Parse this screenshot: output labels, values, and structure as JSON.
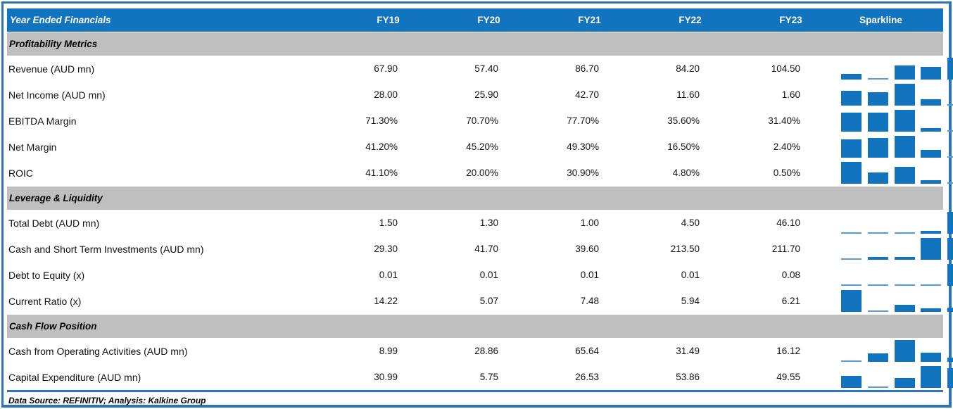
{
  "header": {
    "title": "Year Ended Financials",
    "columns": [
      "FY19",
      "FY20",
      "FY21",
      "FY22",
      "FY23"
    ],
    "sparkline_label": "Sparkline"
  },
  "footer": {
    "source_note": "Data Source: REFINITIV; Analysis: Kalkine Group"
  },
  "colors": {
    "header_blue": "#1273BE",
    "section_gray": "#BFBFBF",
    "border_blue": "#2E75B6",
    "bar_blue": "#1273BE",
    "bar_blue_min": "#5B9BD5",
    "header_text": "#FFFFFF",
    "body_text": "#000000"
  },
  "chart_data": {
    "type": "table",
    "title": "Year Ended Financials",
    "columns": [
      "FY19",
      "FY20",
      "FY21",
      "FY22",
      "FY23"
    ],
    "sparkline": {
      "type": "bar",
      "scaling": "per-row min-max",
      "position": "right column"
    },
    "sections": [
      {
        "label": "Profitability Metrics",
        "rows": [
          {
            "label": "Revenue (AUD mn)",
            "display": [
              "67.90",
              "57.40",
              "86.70",
              "84.20",
              "104.50"
            ],
            "values": [
              67.9,
              57.4,
              86.7,
              84.2,
              104.5
            ]
          },
          {
            "label": "Net Income (AUD mn)",
            "display": [
              "28.00",
              "25.90",
              "42.70",
              "11.60",
              "1.60"
            ],
            "values": [
              28.0,
              25.9,
              42.7,
              11.6,
              1.6
            ]
          },
          {
            "label": "EBITDA Margin",
            "display": [
              "71.30%",
              "70.70%",
              "77.70%",
              "35.60%",
              "31.40%"
            ],
            "values": [
              71.3,
              70.7,
              77.7,
              35.6,
              31.4
            ]
          },
          {
            "label": "Net Margin",
            "display": [
              "41.20%",
              "45.20%",
              "49.30%",
              "16.50%",
              "2.40%"
            ],
            "values": [
              41.2,
              45.2,
              49.3,
              16.5,
              2.4
            ]
          },
          {
            "label": "ROIC",
            "display": [
              "41.10%",
              "20.00%",
              "30.90%",
              "4.80%",
              "0.50%"
            ],
            "values": [
              41.1,
              20.0,
              30.9,
              4.8,
              0.5
            ]
          }
        ]
      },
      {
        "label": "Leverage & Liquidity",
        "rows": [
          {
            "label": "Total Debt (AUD mn)",
            "display": [
              "1.50",
              "1.30",
              "1.00",
              "4.50",
              "46.10"
            ],
            "values": [
              1.5,
              1.3,
              1.0,
              4.5,
              46.1
            ]
          },
          {
            "label": "Cash and Short Term Investments (AUD mn)",
            "display": [
              "29.30",
              "41.70",
              "39.60",
              "213.50",
              "211.70"
            ],
            "values": [
              29.3,
              41.7,
              39.6,
              213.5,
              211.7
            ]
          },
          {
            "label": "Debt to Equity (x)",
            "display": [
              "0.01",
              "0.01",
              "0.01",
              "0.01",
              "0.08"
            ],
            "values": [
              0.01,
              0.01,
              0.01,
              0.01,
              0.08
            ]
          },
          {
            "label": "Current Ratio (x)",
            "display": [
              "14.22",
              "5.07",
              "7.48",
              "5.94",
              "6.21"
            ],
            "values": [
              14.22,
              5.07,
              7.48,
              5.94,
              6.21
            ]
          }
        ]
      },
      {
        "label": "Cash Flow Position",
        "rows": [
          {
            "label": "Cash from Operating Activities (AUD mn)",
            "display": [
              "8.99",
              "28.86",
              "65.64",
              "31.49",
              "16.12"
            ],
            "values": [
              8.99,
              28.86,
              65.64,
              31.49,
              16.12
            ]
          },
          {
            "label": "Capital Expenditure (AUD mn)",
            "display": [
              "30.99",
              "5.75",
              "26.53",
              "53.86",
              "49.55"
            ],
            "values": [
              30.99,
              5.75,
              26.53,
              53.86,
              49.55
            ]
          }
        ]
      }
    ]
  }
}
